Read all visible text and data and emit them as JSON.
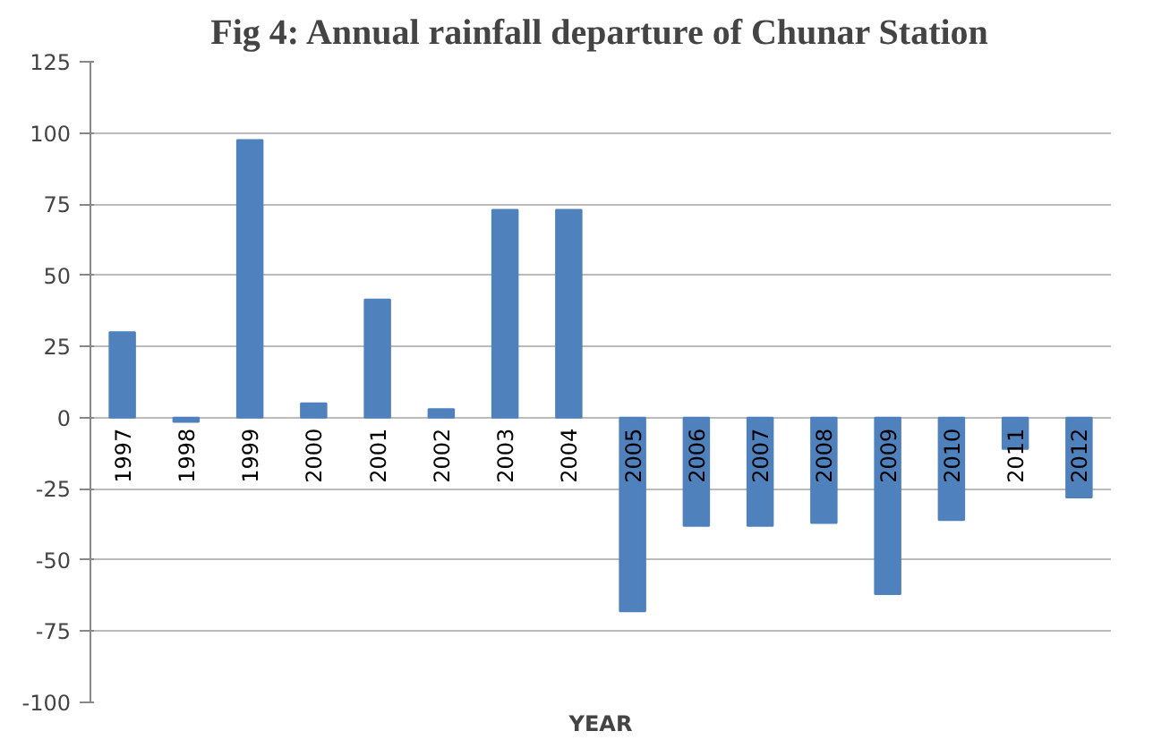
{
  "chart_data": {
    "type": "bar",
    "title": "Fig 4: Annual rainfall departure of Chunar Station",
    "xlabel": "YEAR",
    "categories": [
      "1997",
      "1998",
      "1999",
      "2000",
      "2001",
      "2002",
      "2003",
      "2004",
      "2005",
      "2006",
      "2007",
      "2008",
      "2009",
      "2010",
      "2011",
      "2012"
    ],
    "values": [
      30,
      -1.5,
      97.5,
      5,
      41.5,
      3,
      73,
      73,
      -68,
      -38,
      -38,
      -37,
      -62,
      -36,
      -11,
      -28
    ],
    "color": "#4f81bd",
    "ylim": [
      -100,
      125
    ],
    "yticks": [
      -100,
      -75,
      -50,
      -25,
      0,
      25,
      50,
      75,
      100,
      125
    ],
    "grid": "y"
  }
}
